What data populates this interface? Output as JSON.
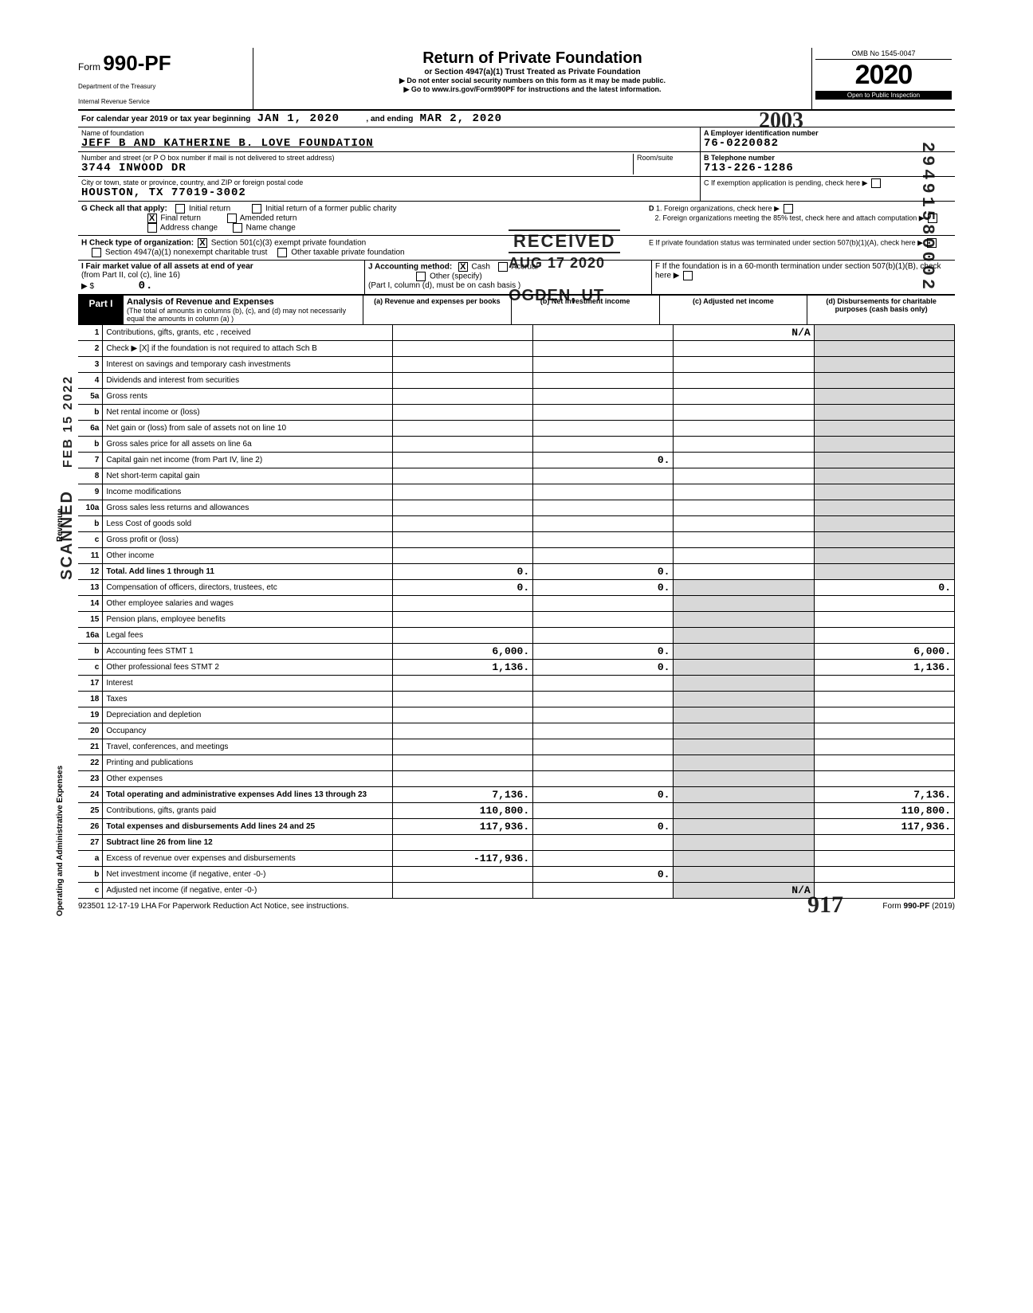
{
  "form": {
    "prefix": "Form",
    "number": "990-PF",
    "dept1": "Department of the Treasury",
    "dept2": "Internal Revenue Service",
    "title": "Return of Private Foundation",
    "subtitle": "or Section 4947(a)(1) Trust Treated as Private Foundation",
    "instr1": "Do not enter social security numbers on this form as it may be made public.",
    "instr2": "Go to www.irs.gov/Form990PF for instructions and the latest information.",
    "omb": "OMB No  1545-0047",
    "year_print": "2020",
    "open": "Open to Public Inspection"
  },
  "cal": {
    "prefix": "For calendar year 2019 or tax year beginning",
    "begin": "JAN 1, 2020",
    "mid": ", and ending",
    "end": "MAR 2, 2020"
  },
  "entity": {
    "name_lbl": "Name of foundation",
    "name": "JEFF B AND KATHERINE B. LOVE FOUNDATION",
    "addr_lbl": "Number and street (or P O  box number if mail is not delivered to street address)",
    "addr": "3744 INWOOD DR",
    "room_lbl": "Room/suite",
    "city_lbl": "City or town, state or province, country, and ZIP or foreign postal code",
    "city": "HOUSTON, TX  77019-3002",
    "ein_lbl": "A Employer identification number",
    "ein": "76-0220082",
    "tel_lbl": "B Telephone number",
    "tel": "713-226-1286",
    "c_lbl": "C  If exemption application is pending, check here",
    "d1": "1. Foreign organizations, check here",
    "d2": "2. Foreign organizations meeting the 85% test, check here and attach computation",
    "e_lbl": "E  If private foundation status was terminated under section 507(b)(1)(A), check here",
    "f_lbl": "F  If the foundation is in a 60-month termination under section 507(b)(1)(B), check here"
  },
  "g": {
    "lbl": "G  Check all that apply:",
    "opts": [
      "Initial return",
      "Final return",
      "Address change",
      "Initial return of a former public charity",
      "Amended return",
      "Name change"
    ],
    "final_x": "X"
  },
  "h": {
    "lbl": "H  Check type of organization:",
    "o1": "Section 501(c)(3) exempt private foundation",
    "o2": "Section 4947(a)(1) nonexempt charitable trust",
    "o3": "Other taxable private foundation",
    "x": "X"
  },
  "ij": {
    "i_lbl": "I  Fair market value of all assets at end of year",
    "i_sub": "(from Part II, col  (c), line 16)",
    "i_arrow": "▶ $",
    "i_val": "0.",
    "j_lbl": "J  Accounting method:",
    "cash": "Cash",
    "accr": "Accrual",
    "other": "Other (specify)",
    "j_note": "(Part I, column (d), must be on cash basis )",
    "x": "X"
  },
  "part1": {
    "lbl": "Part I",
    "title": "Analysis of Revenue and Expenses",
    "sub": "(The total of amounts in columns (b), (c), and (d) may not necessarily equal the amounts in column (a) )",
    "cols": [
      "(a) Revenue and expenses per books",
      "(b) Net investment income",
      "(c) Adjusted net income",
      "(d) Disbursements for charitable purposes (cash basis only)"
    ]
  },
  "rows": [
    {
      "n": "1",
      "d": "Contributions, gifts, grants, etc , received",
      "c": "N/A"
    },
    {
      "n": "2",
      "d": "Check ▶ [X] if the foundation is not required to attach Sch  B"
    },
    {
      "n": "3",
      "d": "Interest on savings and temporary cash investments"
    },
    {
      "n": "4",
      "d": "Dividends and interest from securities"
    },
    {
      "n": "5a",
      "d": "Gross rents"
    },
    {
      "n": "b",
      "d": "Net rental income or (loss)"
    },
    {
      "n": "6a",
      "d": "Net gain or (loss) from sale of assets not on line 10"
    },
    {
      "n": "b",
      "d": "Gross sales price for all assets on line 6a"
    },
    {
      "n": "7",
      "d": "Capital gain net income (from Part IV, line 2)",
      "b": "0."
    },
    {
      "n": "8",
      "d": "Net short-term capital gain"
    },
    {
      "n": "9",
      "d": "Income modifications"
    },
    {
      "n": "10a",
      "d": "Gross sales less returns and allowances"
    },
    {
      "n": "b",
      "d": "Less  Cost of goods sold"
    },
    {
      "n": "c",
      "d": "Gross profit or (loss)"
    },
    {
      "n": "11",
      "d": "Other income"
    },
    {
      "n": "12",
      "d": "Total. Add lines 1 through 11",
      "bold": true,
      "a": "0.",
      "b": "0."
    },
    {
      "n": "13",
      "d": "Compensation of officers, directors, trustees, etc",
      "a": "0.",
      "b": "0.",
      "dd": "0."
    },
    {
      "n": "14",
      "d": "Other employee salaries and wages"
    },
    {
      "n": "15",
      "d": "Pension plans, employee benefits"
    },
    {
      "n": "16a",
      "d": "Legal fees"
    },
    {
      "n": "b",
      "d": "Accounting fees               STMT 1",
      "a": "6,000.",
      "b": "0.",
      "dd": "6,000."
    },
    {
      "n": "c",
      "d": "Other professional fees       STMT 2",
      "a": "1,136.",
      "b": "0.",
      "dd": "1,136."
    },
    {
      "n": "17",
      "d": "Interest"
    },
    {
      "n": "18",
      "d": "Taxes"
    },
    {
      "n": "19",
      "d": "Depreciation and depletion"
    },
    {
      "n": "20",
      "d": "Occupancy"
    },
    {
      "n": "21",
      "d": "Travel, conferences, and meetings"
    },
    {
      "n": "22",
      "d": "Printing and publications"
    },
    {
      "n": "23",
      "d": "Other expenses"
    },
    {
      "n": "24",
      "d": "Total operating and administrative expenses  Add lines 13 through 23",
      "bold": true,
      "a": "7,136.",
      "b": "0.",
      "dd": "7,136."
    },
    {
      "n": "25",
      "d": "Contributions, gifts, grants paid",
      "a": "110,800.",
      "dd": "110,800."
    },
    {
      "n": "26",
      "d": "Total expenses and disbursements Add lines 24 and 25",
      "bold": true,
      "a": "117,936.",
      "b": "0.",
      "dd": "117,936."
    },
    {
      "n": "27",
      "d": "Subtract line 26 from line 12",
      "bold": true
    },
    {
      "n": "a",
      "d": "Excess of revenue over expenses and disbursements",
      "a": "-117,936."
    },
    {
      "n": "b",
      "d": "Net investment income (if negative, enter -0-)",
      "b": "0."
    },
    {
      "n": "c",
      "d": "Adjusted net income (if negative, enter -0-)",
      "c": "N/A"
    }
  ],
  "side": {
    "rev": "Revenue",
    "op": "Operating and Administrative Expenses"
  },
  "stamps": {
    "recv": "RECEIVED",
    "date": "AUG 17 2020",
    "ogden": "OGDEN, UT",
    "side": "29491580002",
    "scan": "SCANNED",
    "feb": "FEB 15 2022",
    "hw_year": "2003",
    "hw_917": "917"
  },
  "footer": {
    "left": "923501  12-17-19   LHA  For Paperwork Reduction Act Notice, see instructions.",
    "right": "Form 990-PF (2019)"
  }
}
